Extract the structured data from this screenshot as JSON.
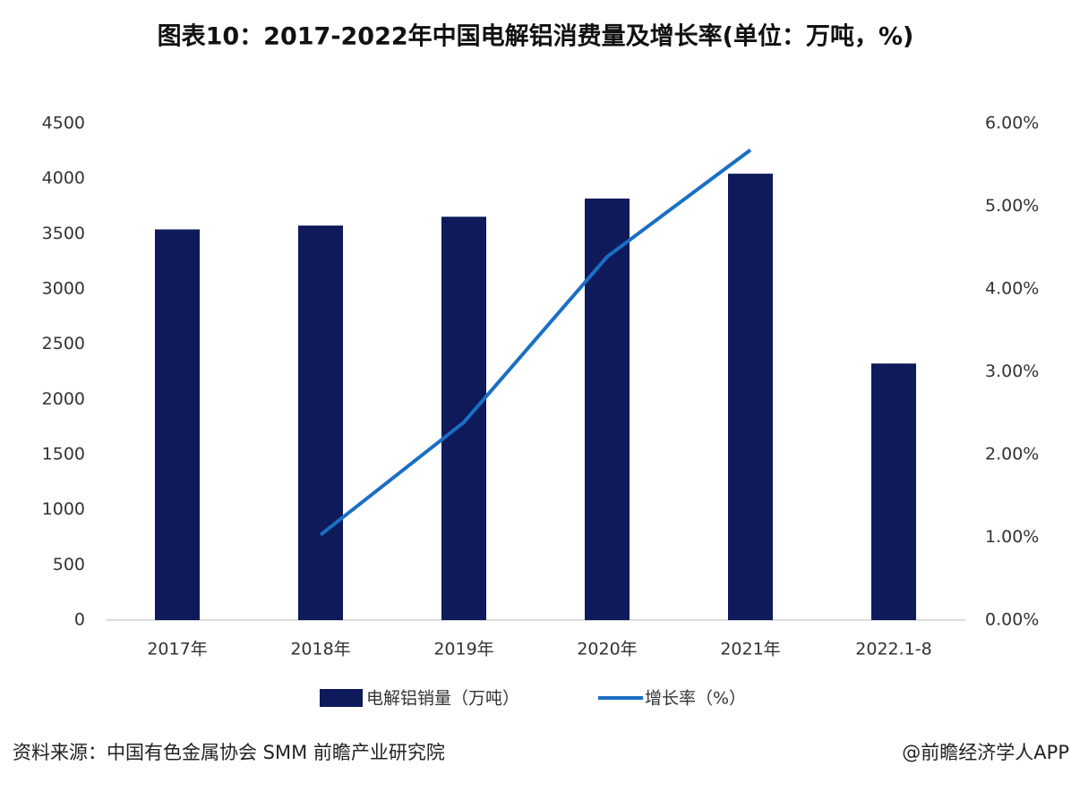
{
  "chart_data": {
    "type": "bar",
    "title": "图表10：2017-2022年中国电解铝消费量及增长率(单位：万吨，%)",
    "categories": [
      "2017年",
      "2018年",
      "2019年",
      "2020年",
      "2021年",
      "2022.1-8"
    ],
    "series": [
      {
        "name": "电解铝销量（万吨）",
        "type": "bar",
        "color": "#0e1a5a",
        "values": [
          3540,
          3575,
          3655,
          3820,
          4045,
          2325
        ]
      },
      {
        "name": "增长率（%）",
        "type": "line",
        "axis": "y2",
        "color": "#1a6fc4",
        "values": [
          null,
          1.03,
          2.39,
          4.39,
          5.68,
          null
        ]
      }
    ],
    "ylim": [
      0,
      4500
    ],
    "yticks": [
      0,
      500,
      1000,
      1500,
      2000,
      2500,
      3000,
      3500,
      4000,
      4500
    ],
    "y2lim": [
      0,
      6
    ],
    "y2ticks": [
      {
        "value": 0,
        "label": "0.00%"
      },
      {
        "value": 1,
        "label": "1.00%"
      },
      {
        "value": 2,
        "label": "2.00%"
      },
      {
        "value": 3,
        "label": "3.00%"
      },
      {
        "value": 4,
        "label": "4.00%"
      },
      {
        "value": 5,
        "label": "5.00%"
      },
      {
        "value": 6,
        "label": "6.00%"
      }
    ],
    "source": "资料来源：中国有色金属协会 SMM 前瞻产业研究院",
    "credit": "@前瞻经济学人APP"
  }
}
